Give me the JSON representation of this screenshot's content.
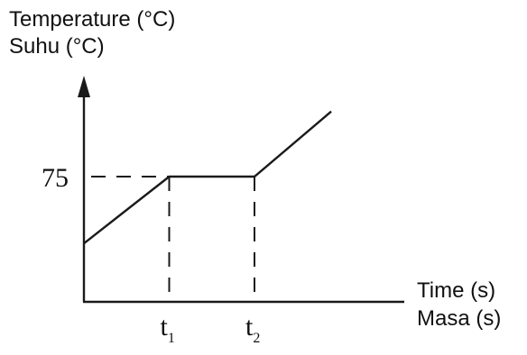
{
  "chart_data": {
    "type": "line",
    "ylabel": "Temperature (°C)",
    "ylabel_alt": "Suhu (°C)",
    "xlabel": "Time (s)",
    "xlabel_alt": "Masa (s)",
    "y_ticks": [
      {
        "label": "75",
        "value": 75
      }
    ],
    "x_ticks": [
      {
        "label": "t",
        "sub": "1",
        "value": 1
      },
      {
        "label": "t",
        "sub": "2",
        "value": 2
      }
    ],
    "xlim": [
      0,
      3
    ],
    "ylim": [
      0,
      140
    ],
    "grid": false,
    "series": [
      {
        "x": [
          0,
          1,
          2,
          2.9
        ],
        "y": [
          35,
          75,
          75,
          114
        ]
      }
    ],
    "guides": [
      {
        "type": "horizontal",
        "y": 75,
        "x_from": 0,
        "x_to": 1
      },
      {
        "type": "vertical",
        "x": 1,
        "y_from": 0,
        "y_to": 75
      },
      {
        "type": "vertical",
        "x": 2,
        "y_from": 0,
        "y_to": 75
      }
    ]
  }
}
